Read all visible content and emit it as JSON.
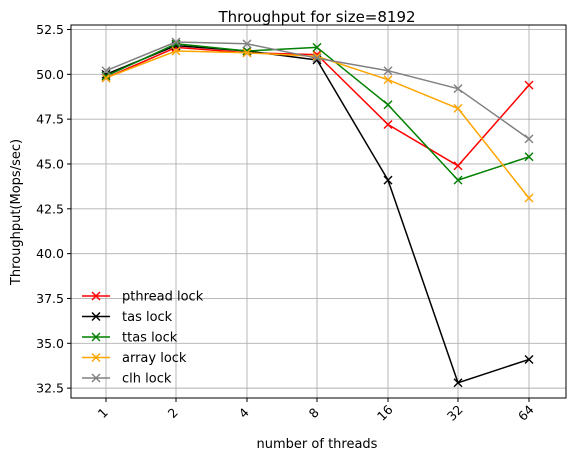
{
  "chart_data": {
    "type": "line",
    "title": "Throughput for size=8192",
    "xlabel": "number of threads",
    "ylabel": "Throughput(Mops/sec)",
    "categories": [
      "1",
      "2",
      "4",
      "8",
      "16",
      "32",
      "64"
    ],
    "ylim": [
      31.95,
      52.75
    ],
    "yticks": [
      "32.5",
      "35.0",
      "37.5",
      "40.0",
      "42.5",
      "45.0",
      "47.5",
      "50.0",
      "52.5"
    ],
    "grid": true,
    "legend_position": "lower-left",
    "marker": "x",
    "series": [
      {
        "name": "pthread lock",
        "color": "#ff0000",
        "values": [
          49.8,
          51.5,
          51.2,
          51.1,
          47.2,
          44.9,
          49.4
        ]
      },
      {
        "name": "tas lock",
        "color": "#000000",
        "values": [
          50.0,
          51.6,
          51.3,
          50.8,
          44.1,
          32.8,
          34.1
        ]
      },
      {
        "name": "ttas lock",
        "color": "#008000",
        "values": [
          49.9,
          51.7,
          51.3,
          51.5,
          48.3,
          44.1,
          45.4
        ]
      },
      {
        "name": "array lock",
        "color": "#ffa500",
        "values": [
          49.8,
          51.3,
          51.2,
          51.0,
          49.7,
          48.1,
          43.1
        ]
      },
      {
        "name": "clh lock",
        "color": "#808080",
        "values": [
          50.2,
          51.8,
          51.7,
          50.9,
          50.2,
          49.2,
          46.4
        ]
      }
    ]
  }
}
